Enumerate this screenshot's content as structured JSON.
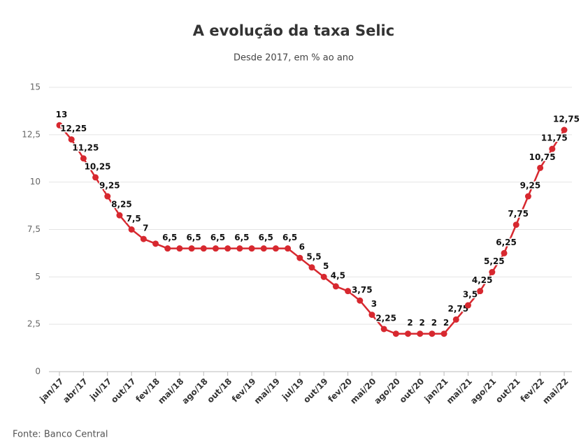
{
  "chart_data": {
    "type": "line",
    "title": "A evolução da taxa Selic",
    "subtitle": "Desde 2017, em % ao ano",
    "source": "Fonte: Banco Central",
    "categories": [
      "jan/17",
      null,
      "abr/17",
      null,
      "jul/17",
      null,
      "out/17",
      null,
      "fev/18",
      null,
      "mai/18",
      null,
      "ago/18",
      null,
      "out/18",
      null,
      "fev/19",
      null,
      "mai/19",
      null,
      "jul/19",
      null,
      "out/19",
      null,
      "fev/20",
      null,
      "mai/20",
      null,
      "ago/20",
      null,
      "out/20",
      null,
      "jan/21",
      null,
      "mai/21",
      null,
      "ago/21",
      null,
      "out/21",
      null,
      "fev/22",
      null,
      "mai/22"
    ],
    "series": [
      {
        "name": "Selic",
        "color": "#d7282f",
        "values": [
          13,
          12.25,
          11.25,
          10.25,
          9.25,
          8.25,
          7.5,
          7,
          6.75,
          6.5,
          6.5,
          6.5,
          6.5,
          6.5,
          6.5,
          6.5,
          6.5,
          6.5,
          6.5,
          6.5,
          6,
          5.5,
          5,
          4.5,
          4.25,
          3.75,
          3,
          2.25,
          2,
          2,
          2,
          2,
          2,
          2.75,
          3.5,
          4.25,
          5.25,
          6.25,
          7.75,
          9.25,
          10.75,
          11.75,
          12.75
        ],
        "value_labels": [
          "13",
          "12,25",
          "11,25",
          "10,25",
          "9,25",
          "8,25",
          "7,5",
          "7",
          null,
          "6,5",
          null,
          "6,5",
          null,
          "6,5",
          null,
          "6,5",
          null,
          "6,5",
          null,
          "6,5",
          "6",
          "5,5",
          "5",
          "4,5",
          null,
          "3,75",
          "3",
          "2,25",
          null,
          "2",
          "2",
          "2",
          "2",
          "2,75",
          "3,5",
          "4,25",
          "5,25",
          "6,25",
          "7,75",
          "9,25",
          "10,75",
          "11,75",
          "12,75"
        ]
      }
    ],
    "ylim": [
      0,
      15
    ],
    "yticks": [
      0,
      {
        "value": 2.5,
        "label": "2,5"
      },
      5,
      {
        "value": 7.5,
        "label": "7,5"
      },
      10,
      {
        "value": 12.5,
        "label": "12,5"
      },
      15
    ],
    "grid": true
  }
}
